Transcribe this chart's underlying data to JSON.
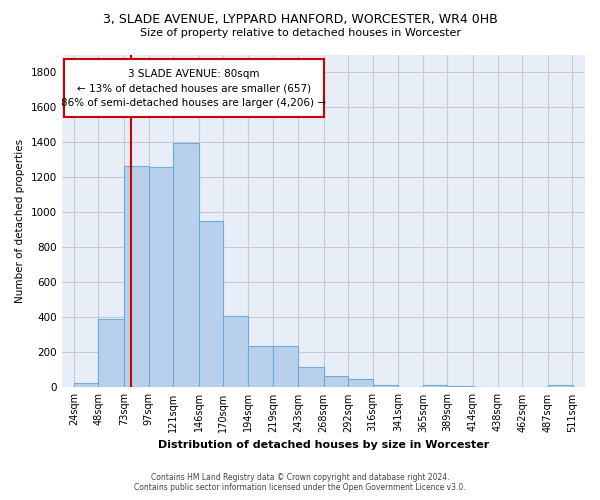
{
  "title_line1": "3, SLADE AVENUE, LYPPARD HANFORD, WORCESTER, WR4 0HB",
  "title_line2": "Size of property relative to detached houses in Worcester",
  "xlabel": "Distribution of detached houses by size in Worcester",
  "ylabel": "Number of detached properties",
  "footer_line1": "Contains HM Land Registry data © Crown copyright and database right 2024.",
  "footer_line2": "Contains public sector information licensed under the Open Government Licence v3.0.",
  "bar_edges": [
    24,
    48,
    73,
    97,
    121,
    146,
    170,
    194,
    219,
    243,
    268,
    292,
    316,
    341,
    365,
    389,
    414,
    438,
    462,
    487,
    511
  ],
  "bar_heights": [
    25,
    390,
    1265,
    1260,
    1395,
    950,
    410,
    235,
    235,
    115,
    65,
    50,
    15,
    0,
    15,
    10,
    0,
    0,
    0,
    15
  ],
  "bar_color": "#b8d0eb",
  "bar_edge_color": "#6aaed6",
  "ylim": [
    0,
    1900
  ],
  "yticks": [
    0,
    200,
    400,
    600,
    800,
    1000,
    1200,
    1400,
    1600,
    1800
  ],
  "property_size": 80,
  "vline_color": "#cc0000",
  "annotation_text_line1": "3 SLADE AVENUE: 80sqm",
  "annotation_text_line2": "← 13% of detached houses are smaller (657)",
  "annotation_text_line3": "86% of semi-detached houses are larger (4,206) →",
  "annotation_box_color": "#cc0000",
  "grid_color": "#c8c8d8",
  "background_color": "#e8eef8"
}
